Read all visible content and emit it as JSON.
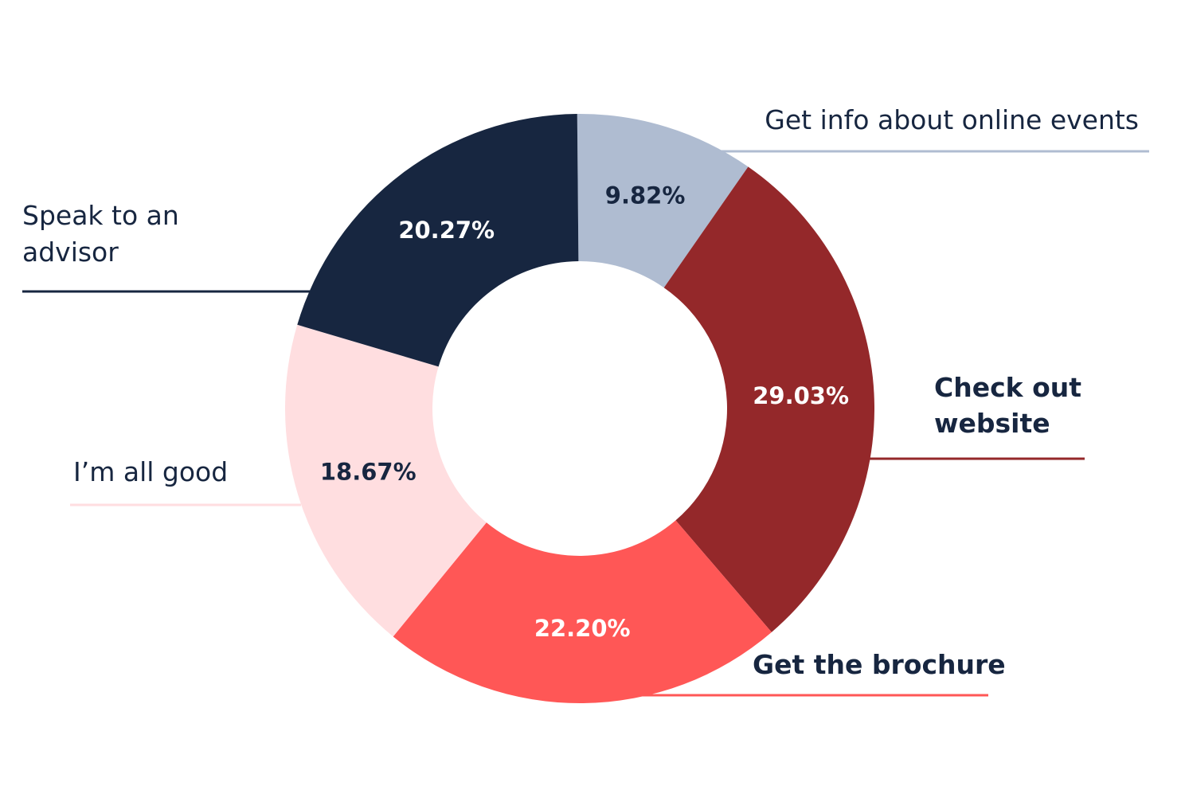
{
  "chart_data": {
    "type": "pie",
    "donut": true,
    "start_angle_deg": -0.5,
    "direction": "clockwise",
    "slices": [
      {
        "name": "Get info about online events",
        "label_lines": [
          "Get info about online events"
        ],
        "value": 9.82,
        "value_label": "9.82%",
        "color": "#AFBCD1",
        "text_color": "#172640",
        "legend_bold": false
      },
      {
        "name": "Check out website",
        "label_lines": [
          "Check out",
          "website"
        ],
        "value": 29.03,
        "value_label": "29.03%",
        "color": "#94282A",
        "text_color": "#FFFFFF",
        "legend_bold": true
      },
      {
        "name": "Get the brochure",
        "label_lines": [
          "Get the brochure"
        ],
        "value": 22.2,
        "value_label": "22.20%",
        "color": "#FF5756",
        "text_color": "#FFFFFF",
        "legend_bold": true
      },
      {
        "name": "I’m all good",
        "label_lines": [
          "I’m all good"
        ],
        "value": 18.67,
        "value_label": "18.67%",
        "color": "#FFDEE0",
        "text_color": "#172640",
        "legend_bold": false
      },
      {
        "name": "Speak to an advisor",
        "label_lines": [
          "Speak to an",
          "advisor"
        ],
        "value": 20.27,
        "value_label": "20.27%",
        "color": "#172640",
        "text_color": "#FFFFFF",
        "legend_bold": false
      }
    ]
  }
}
